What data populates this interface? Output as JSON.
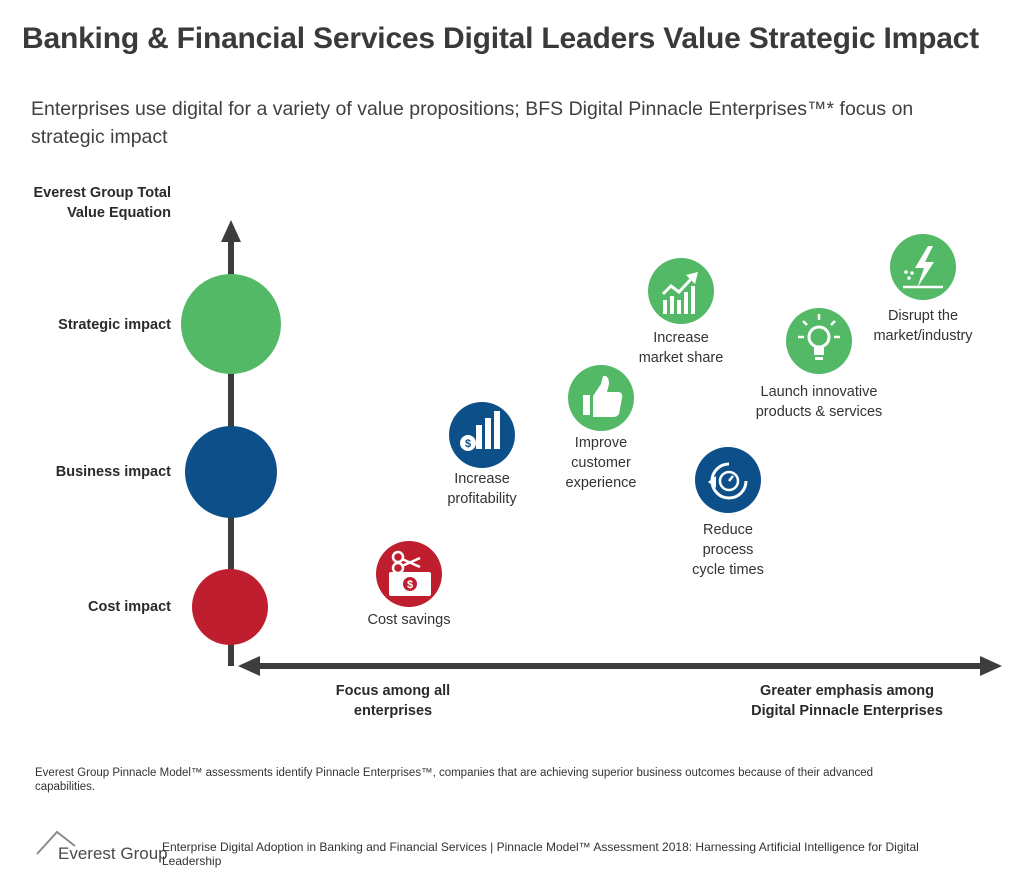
{
  "title": "Banking & Financial Services Digital Leaders Value Strategic Impact",
  "subtitle": "Enterprises use digital for a variety of value propositions; BFS Digital Pinnacle Enterprises™* focus on strategic impact",
  "y_axis": {
    "title_line1": "Everest Group Total",
    "title_line2": "Value Equation",
    "levels": [
      {
        "label": "Strategic impact",
        "color": "#53b966"
      },
      {
        "label": "Business impact",
        "color": "#0d5089"
      },
      {
        "label": "Cost impact",
        "color": "#bf1e2e"
      }
    ]
  },
  "x_axis": {
    "left_line1": "Focus among all",
    "left_line2": "enterprises",
    "right_line1": "Greater emphasis among",
    "right_line2": "Digital Pinnacle Enterprises"
  },
  "items": [
    {
      "icon": "scissors-money-icon",
      "line1": "Cost savings",
      "line2": "",
      "line3": "",
      "color": "#bf1e2e"
    },
    {
      "icon": "money-bar-chart-icon",
      "line1": "Increase",
      "line2": "profitability",
      "line3": "",
      "color": "#0d5089"
    },
    {
      "icon": "thumbs-up-icon",
      "line1": "Improve",
      "line2": "customer",
      "line3": "experience",
      "color": "#53b966"
    },
    {
      "icon": "growth-chart-icon",
      "line1": "Increase",
      "line2": "market share",
      "line3": "",
      "color": "#53b966"
    },
    {
      "icon": "cycle-stopwatch-icon",
      "line1": "Reduce",
      "line2": "process",
      "line3": "cycle times",
      "color": "#0d5089"
    },
    {
      "icon": "lightbulb-icon",
      "line1": "Launch innovative",
      "line2": "products & services",
      "line3": "",
      "color": "#53b966"
    },
    {
      "icon": "lightning-icon",
      "line1": "Disrupt the",
      "line2": "market/industry",
      "line3": "",
      "color": "#53b966"
    }
  ],
  "footnote": "Everest Group Pinnacle Model™ assessments identify Pinnacle Enterprises™, companies that are achieving superior business outcomes because of their advanced capabilities.",
  "logo": "Everest Group",
  "source": "Enterprise Digital Adoption in Banking and Financial Services | Pinnacle Model™ Assessment 2018: Harnessing Artificial Intelligence for Digital Leadership",
  "colors": {
    "axis": "#3d3d3d",
    "green": "#53b966",
    "blue": "#0d5089",
    "red": "#bf1e2e"
  }
}
